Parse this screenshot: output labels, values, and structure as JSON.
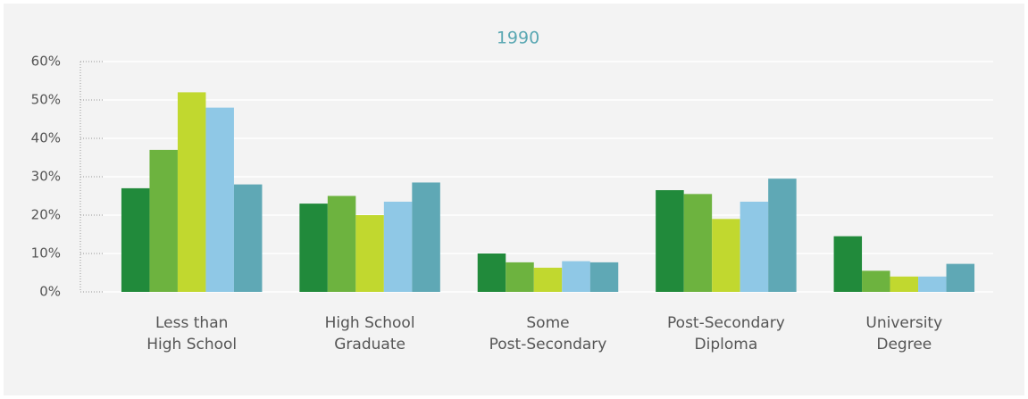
{
  "chart_data": {
    "type": "bar",
    "title": "1990",
    "categories": [
      [
        "Less than",
        "High School"
      ],
      [
        "High School",
        "Graduate"
      ],
      [
        "Some",
        "Post-Secondary"
      ],
      [
        "Post-Secondary",
        "Diploma"
      ],
      [
        "University",
        "Degree"
      ]
    ],
    "series": [
      {
        "color": "#218a3b",
        "values": [
          27,
          23,
          10,
          26.5,
          14.5
        ]
      },
      {
        "color": "#6db33f",
        "values": [
          37,
          25,
          7.7,
          25.5,
          5.5
        ]
      },
      {
        "color": "#c1d82f",
        "values": [
          52,
          20,
          6.3,
          19,
          4
        ]
      },
      {
        "color": "#8fc8e6",
        "values": [
          48,
          23.5,
          8,
          23.5,
          4
        ]
      },
      {
        "color": "#5fa8b5",
        "values": [
          28,
          28.5,
          7.7,
          29.5,
          7.3
        ]
      }
    ],
    "ylim": [
      0,
      60
    ],
    "yticks": [
      {
        "value": 0,
        "label": "0%"
      },
      {
        "value": 10,
        "label": "10%"
      },
      {
        "value": 20,
        "label": "20%"
      },
      {
        "value": 30,
        "label": "30%"
      },
      {
        "value": 40,
        "label": "40%"
      },
      {
        "value": 50,
        "label": "50%"
      },
      {
        "value": 60,
        "label": "60%"
      }
    ],
    "grid": true
  }
}
